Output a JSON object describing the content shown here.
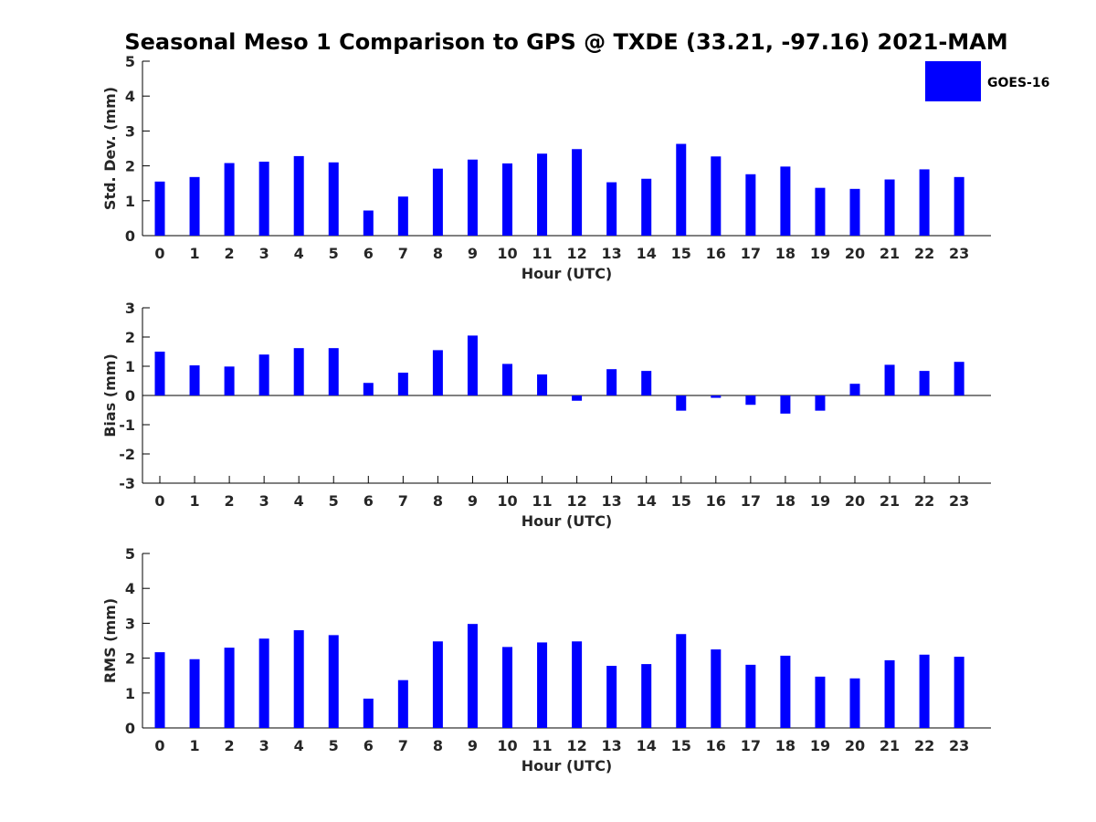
{
  "figure_title": "Seasonal Meso 1 Comparison to GPS @ TXDE (33.21, -97.16) 2021-MAM",
  "legend": {
    "label": "GOES-16",
    "color": "#0000ff"
  },
  "chart_data": [
    {
      "type": "bar",
      "xlabel": "Hour (UTC)",
      "ylabel": "Std. Dev. (mm)",
      "ylim": [
        0,
        5
      ],
      "yticks": [
        "0",
        "1",
        "2",
        "3",
        "4",
        "5"
      ],
      "categories": [
        "0",
        "1",
        "2",
        "3",
        "4",
        "5",
        "6",
        "7",
        "8",
        "9",
        "10",
        "11",
        "12",
        "13",
        "14",
        "15",
        "16",
        "17",
        "18",
        "19",
        "20",
        "21",
        "22",
        "23"
      ],
      "series": [
        {
          "name": "GOES-16",
          "color": "#0000ff",
          "values": [
            1.55,
            1.68,
            2.08,
            2.12,
            2.28,
            2.1,
            0.72,
            1.12,
            1.92,
            2.18,
            2.07,
            2.35,
            2.48,
            1.53,
            1.63,
            2.63,
            2.27,
            1.76,
            1.98,
            1.37,
            1.34,
            1.61,
            1.9,
            1.68
          ]
        }
      ]
    },
    {
      "type": "bar",
      "xlabel": "Hour (UTC)",
      "ylabel": "Bias (mm)",
      "ylim": [
        -3,
        3
      ],
      "yticks": [
        "-3",
        "-2",
        "-1",
        "0",
        "1",
        "2",
        "3"
      ],
      "categories": [
        "0",
        "1",
        "2",
        "3",
        "4",
        "5",
        "6",
        "7",
        "8",
        "9",
        "10",
        "11",
        "12",
        "13",
        "14",
        "15",
        "16",
        "17",
        "18",
        "19",
        "20",
        "21",
        "22",
        "23"
      ],
      "series": [
        {
          "name": "GOES-16",
          "color": "#0000ff",
          "values": [
            1.5,
            1.03,
            0.99,
            1.4,
            1.62,
            1.62,
            0.43,
            0.78,
            1.55,
            2.05,
            1.08,
            0.72,
            -0.18,
            0.9,
            0.84,
            -0.52,
            -0.08,
            -0.32,
            -0.62,
            -0.52,
            0.4,
            1.05,
            0.84,
            1.15
          ]
        }
      ]
    },
    {
      "type": "bar",
      "xlabel": "Hour (UTC)",
      "ylabel": "RMS (mm)",
      "ylim": [
        0,
        5
      ],
      "yticks": [
        "0",
        "1",
        "2",
        "3",
        "4",
        "5"
      ],
      "categories": [
        "0",
        "1",
        "2",
        "3",
        "4",
        "5",
        "6",
        "7",
        "8",
        "9",
        "10",
        "11",
        "12",
        "13",
        "14",
        "15",
        "16",
        "17",
        "18",
        "19",
        "20",
        "21",
        "22",
        "23"
      ],
      "series": [
        {
          "name": "GOES-16",
          "color": "#0000ff",
          "values": [
            2.17,
            1.97,
            2.3,
            2.56,
            2.8,
            2.66,
            0.84,
            1.37,
            2.48,
            2.98,
            2.32,
            2.45,
            2.48,
            1.78,
            1.83,
            2.69,
            2.25,
            1.81,
            2.07,
            1.47,
            1.42,
            1.94,
            2.1,
            2.04
          ]
        }
      ]
    }
  ]
}
